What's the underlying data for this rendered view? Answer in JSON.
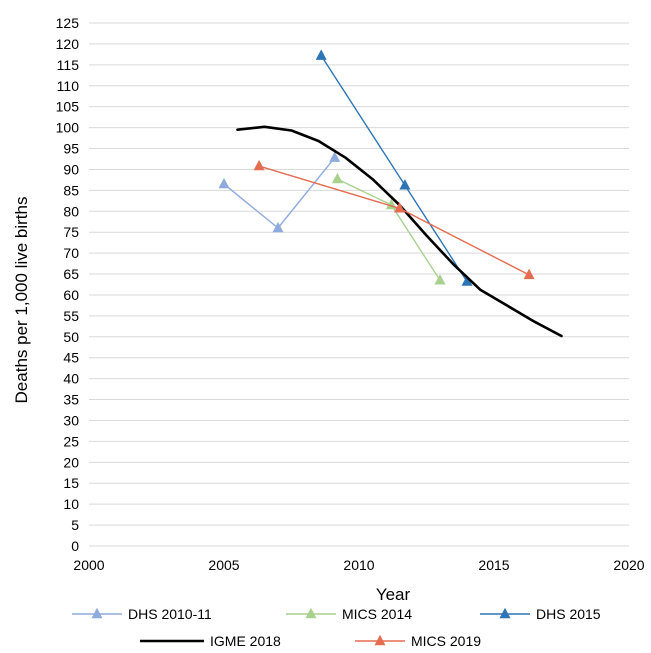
{
  "chart_data": {
    "type": "line",
    "title": "",
    "xlabel": "Year",
    "ylabel": "Deaths per 1,000 live births",
    "xlim": [
      2000,
      2020
    ],
    "ylim": [
      0,
      125
    ],
    "x_ticks": [
      2000,
      2005,
      2010,
      2015,
      2020
    ],
    "y_ticks": [
      0,
      5,
      10,
      15,
      20,
      25,
      30,
      35,
      40,
      45,
      50,
      55,
      60,
      65,
      70,
      75,
      80,
      85,
      90,
      95,
      100,
      105,
      110,
      115,
      120,
      125
    ],
    "grid": "horizontal",
    "legend_position": "bottom",
    "series": [
      {
        "name": "DHS 2010-11",
        "color": "#8FAADC",
        "marker": "triangle",
        "points": [
          [
            2005.0,
            86.5
          ],
          [
            2007.0,
            76.0
          ],
          [
            2009.1,
            92.8
          ]
        ]
      },
      {
        "name": "MICS 2014",
        "color": "#A9D18E",
        "marker": "triangle",
        "points": [
          [
            2009.2,
            87.7
          ],
          [
            2011.2,
            81.5
          ],
          [
            2013.0,
            63.5
          ]
        ]
      },
      {
        "name": "DHS 2015",
        "color": "#2E75B6",
        "marker": "triangle",
        "points": [
          [
            2008.6,
            117.2
          ],
          [
            2011.7,
            86.2
          ],
          [
            2014.0,
            63.2
          ]
        ]
      },
      {
        "name": "IGME 2018",
        "color": "#000000",
        "marker": "none",
        "points": [
          [
            2005.5,
            99.5
          ],
          [
            2006.5,
            100.2
          ],
          [
            2007.5,
            99.3
          ],
          [
            2008.5,
            96.8
          ],
          [
            2009.5,
            92.8
          ],
          [
            2010.5,
            87.7
          ],
          [
            2011.5,
            81.5
          ],
          [
            2012.5,
            74.2
          ],
          [
            2013.5,
            67.3
          ],
          [
            2014.5,
            61.2
          ],
          [
            2015.5,
            57.4
          ],
          [
            2016.5,
            53.6
          ],
          [
            2017.5,
            50.2
          ]
        ]
      },
      {
        "name": "MICS 2019",
        "color": "#E46C50",
        "marker": "triangle",
        "points": [
          [
            2006.3,
            90.8
          ],
          [
            2011.5,
            80.7
          ],
          [
            2016.3,
            64.8
          ]
        ]
      }
    ]
  }
}
